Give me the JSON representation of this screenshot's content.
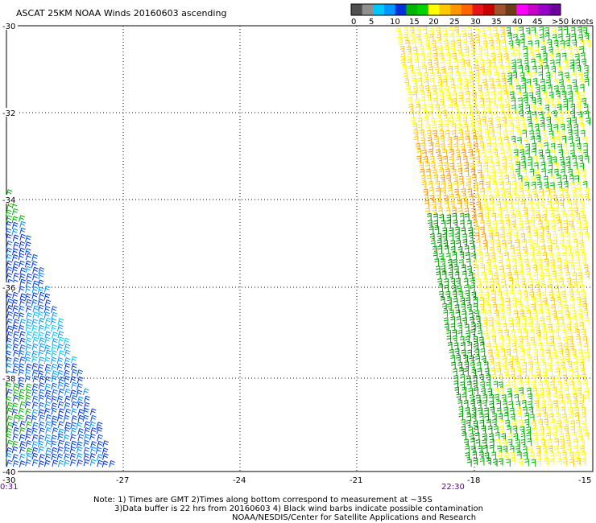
{
  "title": "ASCAT 25KM NOAA Winds 20160603 ascending",
  "legend": {
    "colors": [
      "#505050",
      "#909090",
      "#00c8ff",
      "#0096ff",
      "#0032dc",
      "#00b400",
      "#00d200",
      "#ffff00",
      "#ffc800",
      "#ff9600",
      "#ff6400",
      "#e61414",
      "#c80000",
      "#a0522d",
      "#6e3c14",
      "#ff00ff",
      "#c800c8",
      "#9600c8",
      "#6e00a0"
    ],
    "ticks": [
      "0",
      "5",
      "10",
      "15",
      "20",
      "25",
      "30",
      "35",
      "40",
      "45",
      ">50 knots"
    ]
  },
  "map": {
    "lat_labels": [
      "-30",
      "-32",
      "-34",
      "-36",
      "-38",
      "-40"
    ],
    "lon_labels": [
      "-27",
      "-24",
      "-21",
      "-18",
      "-15"
    ],
    "lon_corner_label": "-30"
  },
  "times": {
    "left": "0:31",
    "right": "22:30"
  },
  "notes": {
    "line1": "Note: 1) Times are GMT 2)Times along bottom correspond to measurement at ~35S",
    "line2": "3)Data buffer is 22 hrs from 20160603 4) Black wind barbs indicate possible contamination",
    "line3": "NOAA/NESDIS/Center for Satellite Applications and Research"
  },
  "swaths": [
    {
      "name": "west-swath",
      "palette": [
        "#0032dc",
        "#0096ff",
        "#00c8ff",
        "#00b400",
        "#0050e6"
      ]
    },
    {
      "name": "east-swath",
      "palette": [
        "#ffff00",
        "#ffe000",
        "#ffc800",
        "#ff9600",
        "#00b400",
        "#008c00"
      ]
    }
  ]
}
